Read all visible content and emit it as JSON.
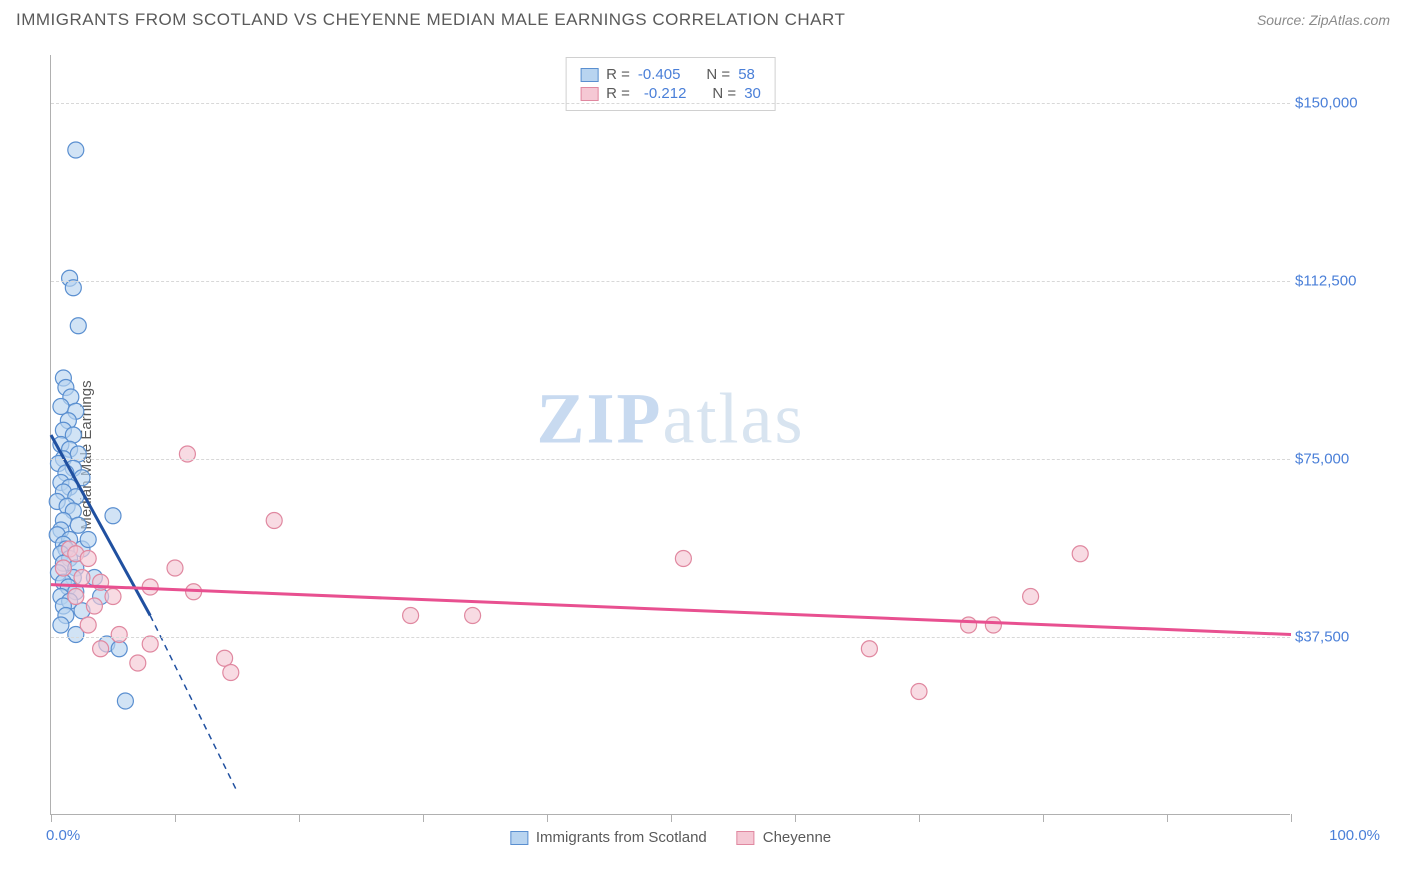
{
  "header": {
    "title": "IMMIGRANTS FROM SCOTLAND VS CHEYENNE MEDIAN MALE EARNINGS CORRELATION CHART",
    "source_prefix": "Source: ",
    "source_name": "ZipAtlas.com"
  },
  "chart": {
    "type": "scatter",
    "ylabel": "Median Male Earnings",
    "xlim": [
      0,
      100
    ],
    "ylim": [
      0,
      160000
    ],
    "x_tick_positions": [
      0,
      10,
      20,
      30,
      40,
      50,
      60,
      70,
      80,
      90,
      100
    ],
    "x_label_min": "0.0%",
    "x_label_max": "100.0%",
    "y_gridlines": [
      {
        "value": 37500,
        "label": "$37,500"
      },
      {
        "value": 75000,
        "label": "$75,000"
      },
      {
        "value": 112500,
        "label": "$112,500"
      },
      {
        "value": 150000,
        "label": "$150,000"
      }
    ],
    "grid_color": "#d8d8d8",
    "background_color": "#ffffff",
    "axis_color": "#b0b0b0",
    "series": [
      {
        "name": "Immigrants from Scotland",
        "color_fill": "#b8d4f0",
        "color_stroke": "#5a8fd0",
        "marker_opacity": 0.65,
        "marker_radius": 8,
        "R": "-0.405",
        "N": "58",
        "trend": {
          "x1": 0,
          "y1": 80000,
          "x2": 8,
          "y2": 42000,
          "color": "#2050a0",
          "width": 3,
          "dash_ext_x": 15,
          "dash_ext_y": 5000
        },
        "points": [
          [
            2.0,
            140000
          ],
          [
            1.5,
            113000
          ],
          [
            1.8,
            111000
          ],
          [
            2.2,
            103000
          ],
          [
            1.0,
            92000
          ],
          [
            1.2,
            90000
          ],
          [
            1.6,
            88000
          ],
          [
            0.8,
            86000
          ],
          [
            2.0,
            85000
          ],
          [
            1.4,
            83000
          ],
          [
            1.0,
            81000
          ],
          [
            1.8,
            80000
          ],
          [
            0.8,
            78000
          ],
          [
            1.5,
            77000
          ],
          [
            2.2,
            76000
          ],
          [
            1.0,
            75000
          ],
          [
            0.6,
            74000
          ],
          [
            1.8,
            73000
          ],
          [
            1.2,
            72000
          ],
          [
            2.5,
            71000
          ],
          [
            0.8,
            70000
          ],
          [
            1.5,
            69000
          ],
          [
            1.0,
            68000
          ],
          [
            2.0,
            67000
          ],
          [
            0.5,
            66000
          ],
          [
            1.3,
            65000
          ],
          [
            1.8,
            64000
          ],
          [
            1.0,
            62000
          ],
          [
            2.2,
            61000
          ],
          [
            0.8,
            60000
          ],
          [
            0.5,
            59000
          ],
          [
            1.5,
            58000
          ],
          [
            1.0,
            57000
          ],
          [
            1.2,
            56000
          ],
          [
            2.5,
            56000
          ],
          [
            5.0,
            63000
          ],
          [
            3.0,
            58000
          ],
          [
            0.8,
            55000
          ],
          [
            1.5,
            54000
          ],
          [
            1.0,
            53000
          ],
          [
            2.0,
            52000
          ],
          [
            0.6,
            51000
          ],
          [
            1.8,
            50000
          ],
          [
            1.0,
            49000
          ],
          [
            1.4,
            48000
          ],
          [
            3.5,
            50000
          ],
          [
            2.0,
            47000
          ],
          [
            0.8,
            46000
          ],
          [
            1.5,
            45000
          ],
          [
            1.0,
            44000
          ],
          [
            2.5,
            43000
          ],
          [
            4.0,
            46000
          ],
          [
            1.2,
            42000
          ],
          [
            0.8,
            40000
          ],
          [
            2.0,
            38000
          ],
          [
            4.5,
            36000
          ],
          [
            5.5,
            35000
          ],
          [
            6.0,
            24000
          ]
        ]
      },
      {
        "name": "Cheyenne",
        "color_fill": "#f5c8d4",
        "color_stroke": "#e088a0",
        "marker_opacity": 0.65,
        "marker_radius": 8,
        "R": "-0.212",
        "N": "30",
        "trend": {
          "x1": 0,
          "y1": 48500,
          "x2": 100,
          "y2": 38000,
          "color": "#e85090",
          "width": 3
        },
        "points": [
          [
            11.0,
            76000
          ],
          [
            18.0,
            62000
          ],
          [
            1.5,
            56000
          ],
          [
            2.0,
            55000
          ],
          [
            3.0,
            54000
          ],
          [
            10.0,
            52000
          ],
          [
            1.0,
            52000
          ],
          [
            2.5,
            50000
          ],
          [
            4.0,
            49000
          ],
          [
            8.0,
            48000
          ],
          [
            11.5,
            47000
          ],
          [
            51.0,
            54000
          ],
          [
            83.0,
            55000
          ],
          [
            2.0,
            46000
          ],
          [
            5.0,
            46000
          ],
          [
            3.5,
            44000
          ],
          [
            29.0,
            42000
          ],
          [
            34.0,
            42000
          ],
          [
            79.0,
            46000
          ],
          [
            74.0,
            40000
          ],
          [
            76.0,
            40000
          ],
          [
            66.0,
            35000
          ],
          [
            3.0,
            40000
          ],
          [
            5.5,
            38000
          ],
          [
            8.0,
            36000
          ],
          [
            4.0,
            35000
          ],
          [
            7.0,
            32000
          ],
          [
            14.0,
            33000
          ],
          [
            14.5,
            30000
          ],
          [
            70.0,
            26000
          ]
        ]
      }
    ]
  },
  "legend_bottom": {
    "items": [
      "Immigrants from Scotland",
      "Cheyenne"
    ]
  },
  "watermark": {
    "part1": "ZIP",
    "part2": "atlas"
  }
}
